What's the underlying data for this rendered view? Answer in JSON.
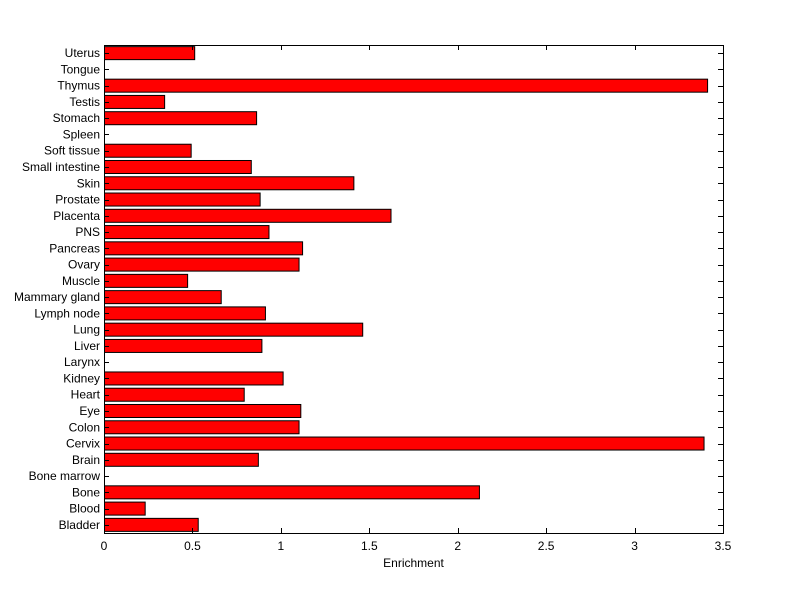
{
  "chart_data": {
    "type": "bar",
    "orientation": "horizontal",
    "categories": [
      "Bladder",
      "Blood",
      "Bone",
      "Bone marrow",
      "Brain",
      "Cervix",
      "Colon",
      "Eye",
      "Heart",
      "Kidney",
      "Larynx",
      "Liver",
      "Lung",
      "Lymph node",
      "Mammary gland",
      "Muscle",
      "Ovary",
      "Pancreas",
      "PNS",
      "Placenta",
      "Prostate",
      "Skin",
      "Small intestine",
      "Soft tissue",
      "Spleen",
      "Stomach",
      "Testis",
      "Thymus",
      "Tongue",
      "Uterus"
    ],
    "values": [
      0.53,
      0.23,
      2.12,
      0,
      0.87,
      3.39,
      1.1,
      1.11,
      0.79,
      1.01,
      0,
      0.89,
      1.46,
      0.91,
      0.66,
      0.47,
      1.1,
      1.12,
      0.93,
      1.62,
      0.88,
      1.41,
      0.83,
      0.49,
      0,
      0.86,
      0.34,
      3.41,
      0,
      0.51
    ],
    "title": "",
    "xlabel": "Enrichment",
    "ylabel": "",
    "xlim": [
      0,
      3.5
    ],
    "xticks": [
      "0",
      "0.5",
      "1",
      "1.5",
      "2",
      "2.5",
      "3",
      "3.5"
    ],
    "bar_color": "#ff0000",
    "bar_edge_color": "#000000",
    "grid": false
  }
}
